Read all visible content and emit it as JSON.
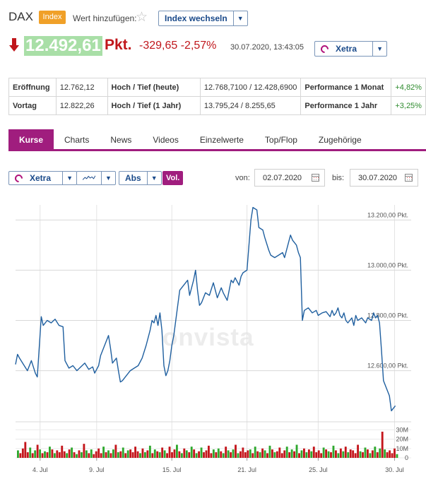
{
  "header": {
    "title": "DAX",
    "badge": "Index",
    "watch_label": "Wert hinzufügen:",
    "star_icon": "star-outline-icon",
    "switch_index_label": "Index wechseln"
  },
  "quote": {
    "direction_icon": "arrow-down-icon",
    "price": "12.492,61",
    "unit": "Pkt.",
    "change": "-329,65 -2,57%",
    "datetime": "30.07.2020, 13:43:05",
    "exchange": "Xetra",
    "price_bg": "#a9dfa7",
    "negative_color": "#c0161b"
  },
  "stats": {
    "rows": [
      {
        "k1": "Eröffnung",
        "v1": "12.762,12",
        "k2": "Hoch / Tief (heute)",
        "v2": "12.768,7100 / 12.428,6900",
        "k3": "Performance 1 Monat",
        "v3": "+4,82%"
      },
      {
        "k1": "Vortag",
        "v1": "12.822,26",
        "k2": "Hoch / Tief (1 Jahr)",
        "v2": "13.795,24 / 8.255,65",
        "k3": "Performance 1 Jahr",
        "v3": "+3,25%"
      }
    ]
  },
  "tabs": [
    "Kurse",
    "Charts",
    "News",
    "Videos",
    "Einzelwerte",
    "Top/Flop",
    "Zugehörige"
  ],
  "toolbar": {
    "exchange": "Xetra",
    "chart_type_icon": "line-chart-icon",
    "scale": "Abs",
    "vol": "Vol.",
    "from_label": "von:",
    "from_date": "02.07.2020",
    "to_label": "bis:",
    "to_date": "30.07.2020",
    "calendar_icon": "calendar-icon"
  },
  "watermark": "onvista",
  "accent_color": "#a01d7e",
  "chart_data": {
    "type": "line",
    "price_axis": {
      "ticks": [
        "12.600,00 Pkt.",
        "12.800,00 Pkt.",
        "13.000,00 Pkt.",
        "13.200,00 Pkt."
      ],
      "tick_values": [
        12600,
        12800,
        13000,
        13200
      ],
      "ylim": [
        12430,
        13260
      ]
    },
    "volume_axis": {
      "ticks": [
        "0",
        "10M",
        "20M",
        "30M"
      ],
      "tick_values": [
        0,
        10,
        20,
        30
      ],
      "ylim": [
        0,
        34
      ]
    },
    "x_labels": [
      "4. Jul",
      "9. Jul",
      "15. Jul",
      "21. Jul",
      "25. Jul",
      "30. Jul"
    ],
    "x_label_positions": [
      0.062,
      0.205,
      0.395,
      0.585,
      0.765,
      0.958
    ],
    "price_series": [
      [
        0.0,
        12625
      ],
      [
        0.005,
        12665
      ],
      [
        0.01,
        12650
      ],
      [
        0.02,
        12625
      ],
      [
        0.03,
        12600
      ],
      [
        0.04,
        12640
      ],
      [
        0.05,
        12590
      ],
      [
        0.055,
        12575
      ],
      [
        0.065,
        12815
      ],
      [
        0.07,
        12780
      ],
      [
        0.08,
        12800
      ],
      [
        0.09,
        12790
      ],
      [
        0.1,
        12805
      ],
      [
        0.11,
        12780
      ],
      [
        0.12,
        12775
      ],
      [
        0.125,
        12640
      ],
      [
        0.135,
        12610
      ],
      [
        0.145,
        12620
      ],
      [
        0.155,
        12600
      ],
      [
        0.165,
        12615
      ],
      [
        0.175,
        12630
      ],
      [
        0.185,
        12605
      ],
      [
        0.195,
        12615
      ],
      [
        0.2,
        12590
      ],
      [
        0.21,
        12620
      ],
      [
        0.215,
        12660
      ],
      [
        0.225,
        12700
      ],
      [
        0.235,
        12740
      ],
      [
        0.24,
        12690
      ],
      [
        0.245,
        12630
      ],
      [
        0.255,
        12650
      ],
      [
        0.26,
        12600
      ],
      [
        0.265,
        12555
      ],
      [
        0.27,
        12560
      ],
      [
        0.28,
        12580
      ],
      [
        0.29,
        12600
      ],
      [
        0.3,
        12610
      ],
      [
        0.31,
        12620
      ],
      [
        0.32,
        12650
      ],
      [
        0.33,
        12700
      ],
      [
        0.34,
        12760
      ],
      [
        0.345,
        12800
      ],
      [
        0.35,
        12790
      ],
      [
        0.355,
        12820
      ],
      [
        0.36,
        12780
      ],
      [
        0.365,
        12830
      ],
      [
        0.37,
        12760
      ],
      [
        0.375,
        12620
      ],
      [
        0.38,
        12580
      ],
      [
        0.385,
        12600
      ],
      [
        0.39,
        12640
      ],
      [
        0.395,
        12700
      ],
      [
        0.4,
        12740
      ],
      [
        0.405,
        12800
      ],
      [
        0.41,
        12860
      ],
      [
        0.415,
        12920
      ],
      [
        0.425,
        12940
      ],
      [
        0.435,
        12960
      ],
      [
        0.44,
        12900
      ],
      [
        0.45,
        12960
      ],
      [
        0.455,
        13000
      ],
      [
        0.46,
        12920
      ],
      [
        0.465,
        12860
      ],
      [
        0.47,
        12870
      ],
      [
        0.48,
        12910
      ],
      [
        0.49,
        12900
      ],
      [
        0.5,
        12950
      ],
      [
        0.505,
        12920
      ],
      [
        0.51,
        12890
      ],
      [
        0.52,
        12930
      ],
      [
        0.525,
        12910
      ],
      [
        0.535,
        12880
      ],
      [
        0.54,
        12920
      ],
      [
        0.545,
        12960
      ],
      [
        0.55,
        12950
      ],
      [
        0.555,
        12970
      ],
      [
        0.565,
        12940
      ],
      [
        0.57,
        12975
      ],
      [
        0.575,
        12990
      ],
      [
        0.585,
        13000
      ],
      [
        0.59,
        13100
      ],
      [
        0.595,
        13200
      ],
      [
        0.6,
        13250
      ],
      [
        0.61,
        13240
      ],
      [
        0.615,
        13170
      ],
      [
        0.625,
        13160
      ],
      [
        0.63,
        13130
      ],
      [
        0.64,
        13080
      ],
      [
        0.645,
        13060
      ],
      [
        0.655,
        13050
      ],
      [
        0.665,
        13060
      ],
      [
        0.675,
        13070
      ],
      [
        0.68,
        13050
      ],
      [
        0.69,
        13110
      ],
      [
        0.695,
        13140
      ],
      [
        0.7,
        13120
      ],
      [
        0.71,
        13100
      ],
      [
        0.715,
        13070
      ],
      [
        0.72,
        13050
      ],
      [
        0.725,
        12800
      ],
      [
        0.73,
        12840
      ],
      [
        0.74,
        12850
      ],
      [
        0.75,
        12830
      ],
      [
        0.76,
        12840
      ],
      [
        0.765,
        12820
      ],
      [
        0.775,
        12830
      ],
      [
        0.785,
        12835
      ],
      [
        0.795,
        12815
      ],
      [
        0.8,
        12840
      ],
      [
        0.805,
        12820
      ],
      [
        0.81,
        12830
      ],
      [
        0.815,
        12850
      ],
      [
        0.82,
        12820
      ],
      [
        0.825,
        12810
      ],
      [
        0.83,
        12830
      ],
      [
        0.835,
        12800
      ],
      [
        0.84,
        12790
      ],
      [
        0.85,
        12810
      ],
      [
        0.855,
        12780
      ],
      [
        0.86,
        12820
      ],
      [
        0.865,
        12800
      ],
      [
        0.875,
        12810
      ],
      [
        0.885,
        12790
      ],
      [
        0.89,
        12810
      ],
      [
        0.9,
        12800
      ],
      [
        0.905,
        12830
      ],
      [
        0.91,
        12810
      ],
      [
        0.915,
        12820
      ],
      [
        0.92,
        12790
      ],
      [
        0.925,
        12680
      ],
      [
        0.93,
        12560
      ],
      [
        0.94,
        12520
      ],
      [
        0.945,
        12500
      ],
      [
        0.95,
        12440
      ],
      [
        0.96,
        12460
      ]
    ],
    "volume_series": [
      8,
      5,
      10,
      17,
      6,
      11,
      5,
      8,
      14,
      9,
      5,
      7,
      6,
      12,
      9,
      5,
      8,
      6,
      13,
      7,
      5,
      9,
      11,
      6,
      4,
      8,
      6,
      15,
      8,
      5,
      9,
      4,
      7,
      10,
      5,
      12,
      6,
      8,
      5,
      9,
      14,
      6,
      7,
      11,
      5,
      8,
      9,
      6,
      12,
      7,
      5,
      10,
      6,
      8,
      13,
      5,
      9,
      7,
      6,
      11,
      8,
      5,
      12,
      6,
      9,
      14,
      7,
      5,
      10,
      8,
      6,
      12,
      9,
      5,
      7,
      11,
      6,
      8,
      13,
      5,
      9,
      6,
      10,
      7,
      5,
      12,
      8,
      6,
      9,
      14,
      5,
      7,
      11,
      6,
      8,
      9,
      5,
      12,
      7,
      6,
      10,
      8,
      5,
      13,
      9,
      6,
      7,
      11,
      5,
      8,
      12,
      6,
      9,
      7,
      14,
      5,
      8,
      10,
      6,
      9,
      7,
      12,
      6,
      8,
      5,
      11,
      9,
      7,
      6,
      13,
      8,
      5,
      10,
      7,
      12,
      6,
      9,
      8,
      5,
      14,
      7,
      6,
      11,
      9,
      5,
      8,
      12,
      6,
      10,
      28,
      9,
      6,
      8,
      5,
      10,
      4
    ]
  }
}
